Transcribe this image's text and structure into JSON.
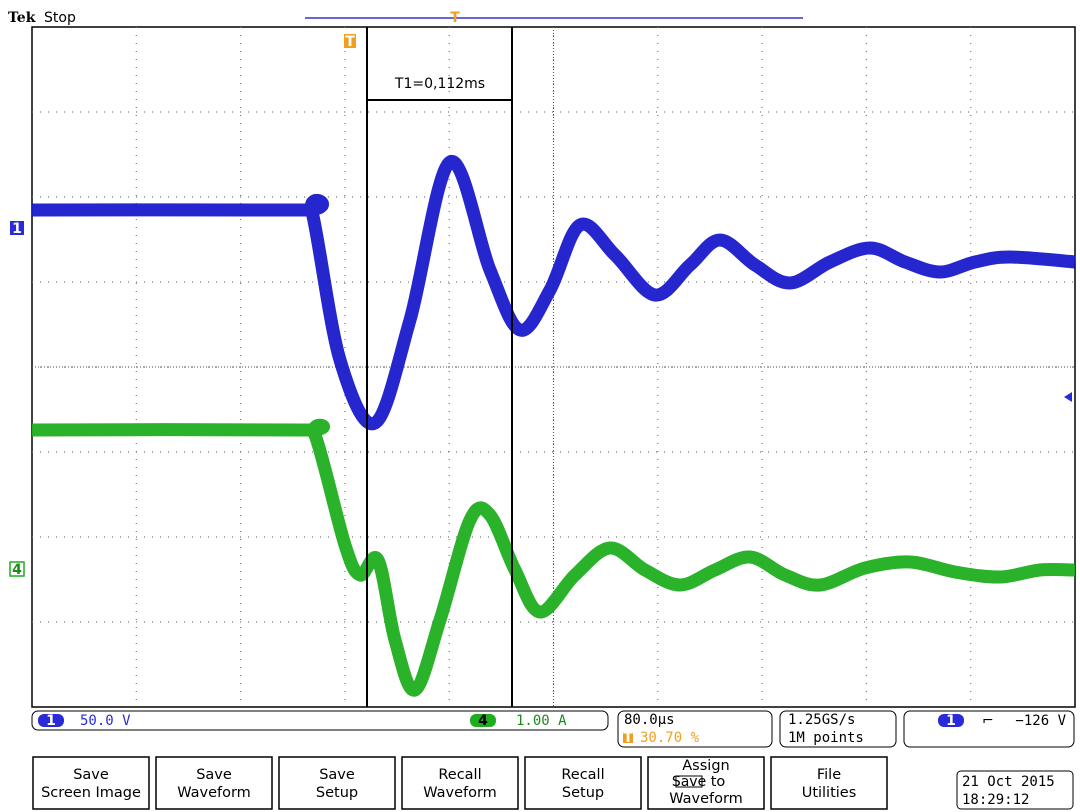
{
  "header": {
    "brand": "Tek",
    "status": "Stop"
  },
  "cursor_readout": "T1=0,112ms",
  "markers": {
    "ch1": "1",
    "ch4": "4",
    "trigger": "T"
  },
  "status_bar": {
    "ch1": {
      "label": "1",
      "scale": "50.0 V"
    },
    "ch4": {
      "label": "4",
      "scale": "1.00 A"
    },
    "timebase": {
      "scale": "80.0µs",
      "position": "30.70 %"
    },
    "acquisition": {
      "rate": "1.25GS/s",
      "length": "1M points"
    },
    "trigger": {
      "source": "1",
      "slope": "⌐",
      "level": "−126 V"
    }
  },
  "menu": [
    {
      "lines": [
        "Save",
        "Screen Image"
      ]
    },
    {
      "lines": [
        "Save",
        "Waveform"
      ]
    },
    {
      "lines": [
        "Save",
        "Setup"
      ]
    },
    {
      "lines": [
        "Recall",
        "Waveform"
      ]
    },
    {
      "lines": [
        "Recall",
        "Setup"
      ]
    },
    {
      "lines": [
        "Assign",
        "Save",
        "to",
        "Waveform"
      ]
    },
    {
      "lines": [
        "File",
        "Utilities"
      ]
    }
  ],
  "datetime": {
    "date": "21 Oct  2015",
    "time": "18:29:12"
  }
}
